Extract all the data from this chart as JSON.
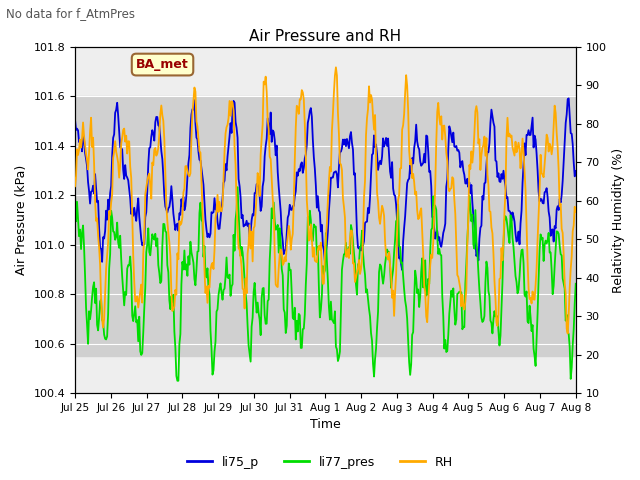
{
  "title": "Air Pressure and RH",
  "top_left_text": "No data for f_AtmPres",
  "annotation_box": "BA_met",
  "xlabel": "Time",
  "ylabel_left": "Air Pressure (kPa)",
  "ylabel_right": "Relativity Humidity (%)",
  "ylim_left": [
    100.4,
    101.8
  ],
  "ylim_right": [
    10,
    100
  ],
  "yticks_left": [
    100.4,
    100.6,
    100.8,
    101.0,
    101.2,
    101.4,
    101.6,
    101.8
  ],
  "yticks_right": [
    10,
    20,
    30,
    40,
    50,
    60,
    70,
    80,
    90,
    100
  ],
  "xtick_labels": [
    "Jul 25",
    "Jul 26",
    "Jul 27",
    "Jul 28",
    "Jul 29",
    "Jul 30",
    "Jul 31",
    "Aug 1",
    "Aug 2",
    "Aug 3",
    "Aug 4",
    "Aug 5",
    "Aug 6",
    "Aug 7",
    "Aug 8"
  ],
  "color_li75": "#0000dd",
  "color_li77": "#00dd00",
  "color_rh": "#ffaa00",
  "legend_labels": [
    "li75_p",
    "li77_pres",
    "RH"
  ],
  "background_color": "#ffffff",
  "plot_bg_color": "#eeeeee",
  "grid_color": "#ffffff",
  "shaded_band_lo": 100.55,
  "shaded_band_hi": 101.6,
  "shaded_band_color": "#d0d0d0",
  "n_points": 500
}
